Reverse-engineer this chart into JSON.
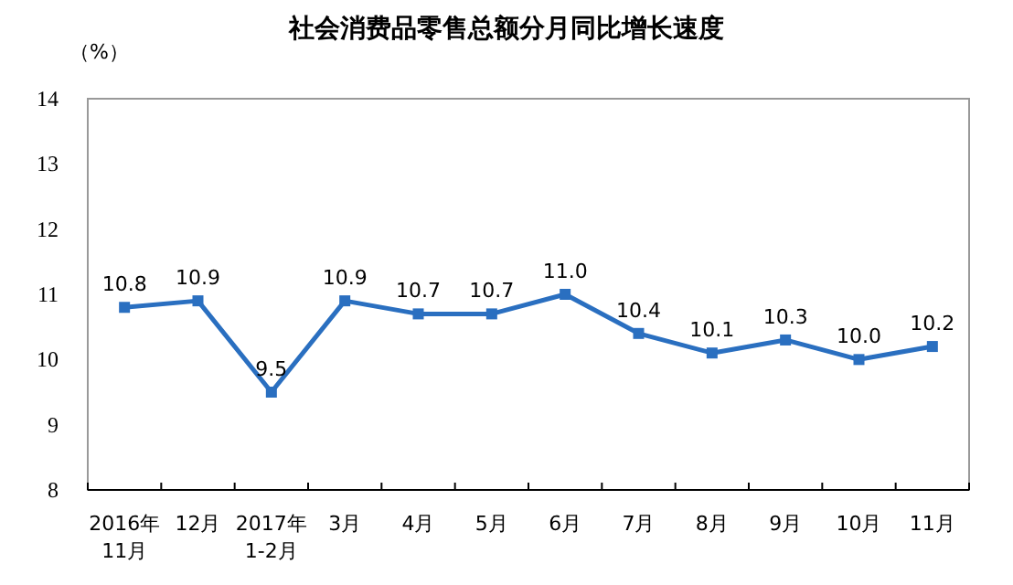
{
  "chart_data": {
    "type": "line",
    "title": "社会消费品零售总额分月同比增长速度",
    "ylabel": "（%）",
    "categories": [
      "2016年\n11月",
      "12月",
      "2017年\n1-2月",
      "3月",
      "4月",
      "5月",
      "6月",
      "7月",
      "8月",
      "9月",
      "10月",
      "11月"
    ],
    "series": [
      {
        "color": "#2a6fc0",
        "values": [
          10.8,
          10.9,
          9.5,
          10.9,
          10.7,
          10.7,
          11.0,
          10.4,
          10.1,
          10.3,
          10.0,
          10.2
        ],
        "value_labels": [
          "10.8",
          "10.9",
          "9.5",
          "10.9",
          "10.7",
          "10.7",
          "11.0",
          "10.4",
          "10.1",
          "10.3",
          "10.0",
          "10.2"
        ]
      }
    ],
    "ylim": [
      8,
      14
    ],
    "yticks": [
      8,
      9,
      10,
      11,
      12,
      13,
      14
    ],
    "marker": "square"
  }
}
